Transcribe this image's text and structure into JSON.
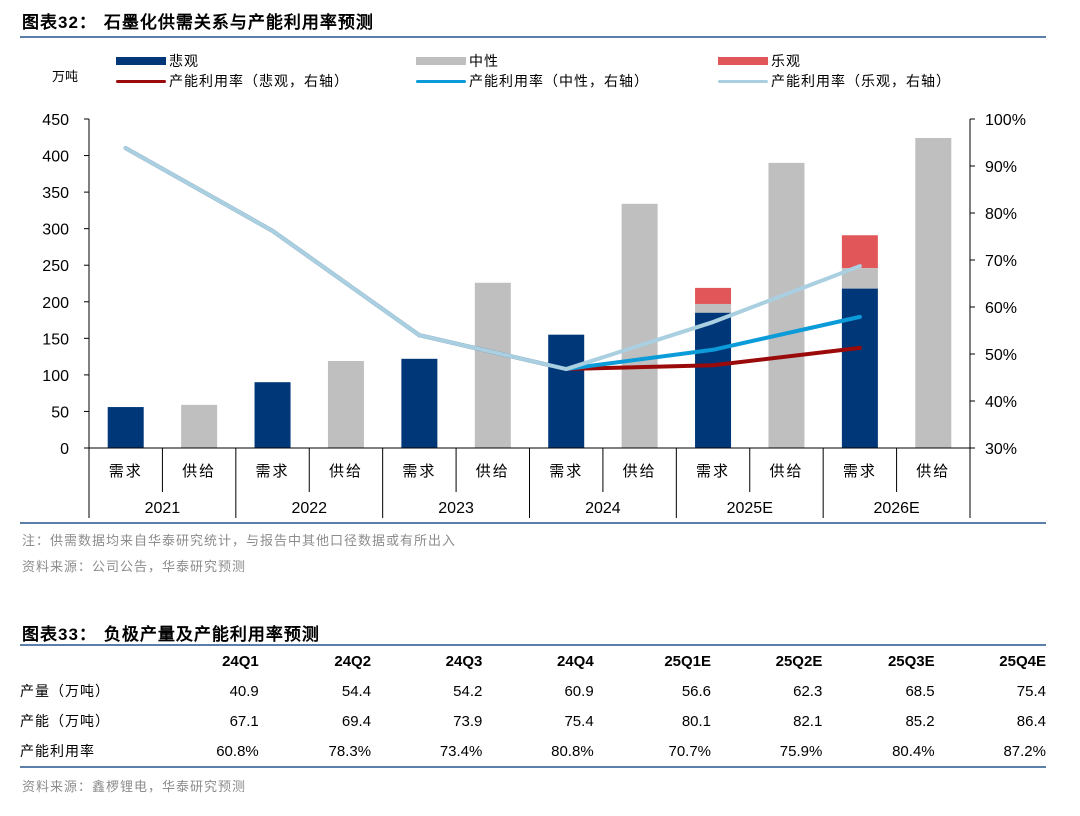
{
  "figure32": {
    "title_prefix": "图表",
    "title_num": "32：",
    "title_text": "石墨化供需关系与产能利用率预测",
    "unit_label": "万吨",
    "legend": [
      {
        "label": "悲观",
        "kind": "bar",
        "color": "#003778"
      },
      {
        "label": "中性",
        "kind": "bar",
        "color": "#bfbfbf"
      },
      {
        "label": "乐观",
        "kind": "bar",
        "color": "#e15759"
      },
      {
        "label": "产能利用率（悲观，右轴）",
        "kind": "line",
        "color": "#9b0a0a"
      },
      {
        "label": "产能利用率（中性，右轴）",
        "kind": "line",
        "color": "#0a9bd8"
      },
      {
        "label": "产能利用率（乐观，右轴）",
        "kind": "line",
        "color": "#a9cfe0"
      }
    ],
    "note": "注：供需数据均来自华泰研究统计，与报告中其他口径数据或有所出入",
    "source": "资料来源：公司公告，华泰研究预测"
  },
  "chart_data": {
    "type": "bar",
    "title": "石墨化供需关系与产能利用率预测",
    "ylabel": "万吨",
    "ylim": [
      0,
      450
    ],
    "yticks": [
      0,
      50,
      100,
      150,
      200,
      250,
      300,
      350,
      400,
      450
    ],
    "y2lim": [
      30,
      100
    ],
    "y2ticks": [
      "30%",
      "40%",
      "50%",
      "60%",
      "70%",
      "80%",
      "90%",
      "100%"
    ],
    "grid": false,
    "legend_position": "top",
    "groups": [
      "2021",
      "2022",
      "2023",
      "2024",
      "2025E",
      "2026E"
    ],
    "subcategories": [
      "需求",
      "供给"
    ],
    "demand": {
      "pessimistic": [
        56,
        90,
        122,
        155,
        185,
        218
      ],
      "neutral": [
        56,
        90,
        122,
        155,
        197,
        246
      ],
      "optimistic": [
        56,
        90,
        122,
        155,
        219,
        291
      ]
    },
    "supply": [
      59,
      119,
      226,
      334,
      390,
      424
    ],
    "utilization_pct": {
      "pessimistic": [
        93.8,
        76.2,
        54.0,
        46.8,
        47.6,
        51.3
      ],
      "neutral": [
        93.8,
        76.2,
        54.0,
        46.8,
        50.9,
        57.9
      ],
      "optimistic": [
        93.8,
        76.2,
        54.0,
        46.8,
        56.8,
        68.7
      ]
    }
  },
  "figure33": {
    "title_prefix": "图表",
    "title_num": "33：",
    "title_text": "负极产量及产能利用率预测",
    "columns": [
      "",
      "24Q1",
      "24Q2",
      "24Q3",
      "24Q4",
      "25Q1E",
      "25Q2E",
      "25Q3E",
      "25Q4E"
    ],
    "rows": [
      {
        "label": "产量（万吨）",
        "values": [
          "40.9",
          "54.4",
          "54.2",
          "60.9",
          "56.6",
          "62.3",
          "68.5",
          "75.4"
        ]
      },
      {
        "label": "产能（万吨）",
        "values": [
          "67.1",
          "69.4",
          "73.9",
          "75.4",
          "80.1",
          "82.1",
          "85.2",
          "86.4"
        ]
      },
      {
        "label": "产能利用率",
        "values": [
          "60.8%",
          "78.3%",
          "73.4%",
          "80.8%",
          "70.7%",
          "75.9%",
          "80.4%",
          "87.2%"
        ]
      }
    ],
    "source": "资料来源：鑫椤锂电，华泰研究预测"
  }
}
